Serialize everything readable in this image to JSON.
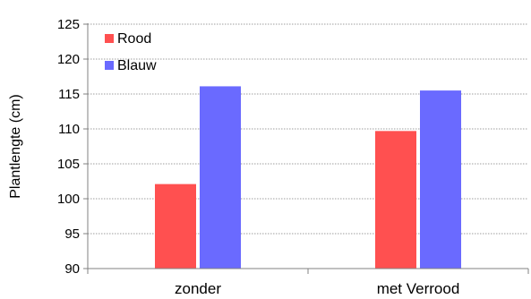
{
  "chart_data": {
    "type": "bar",
    "categories": [
      "zonder",
      "met Verrood"
    ],
    "series": [
      {
        "name": "Rood",
        "values": [
          102.1,
          109.7
        ],
        "color": "#ff5050"
      },
      {
        "name": "Blauw",
        "values": [
          116.1,
          115.5
        ],
        "color": "#6a6aff"
      }
    ],
    "ylabel": "Plantlengte (cm)",
    "ylim": [
      90,
      125
    ],
    "yticks": [
      90,
      95,
      100,
      105,
      110,
      115,
      120,
      125
    ],
    "grid": true,
    "legend": "top-left"
  }
}
